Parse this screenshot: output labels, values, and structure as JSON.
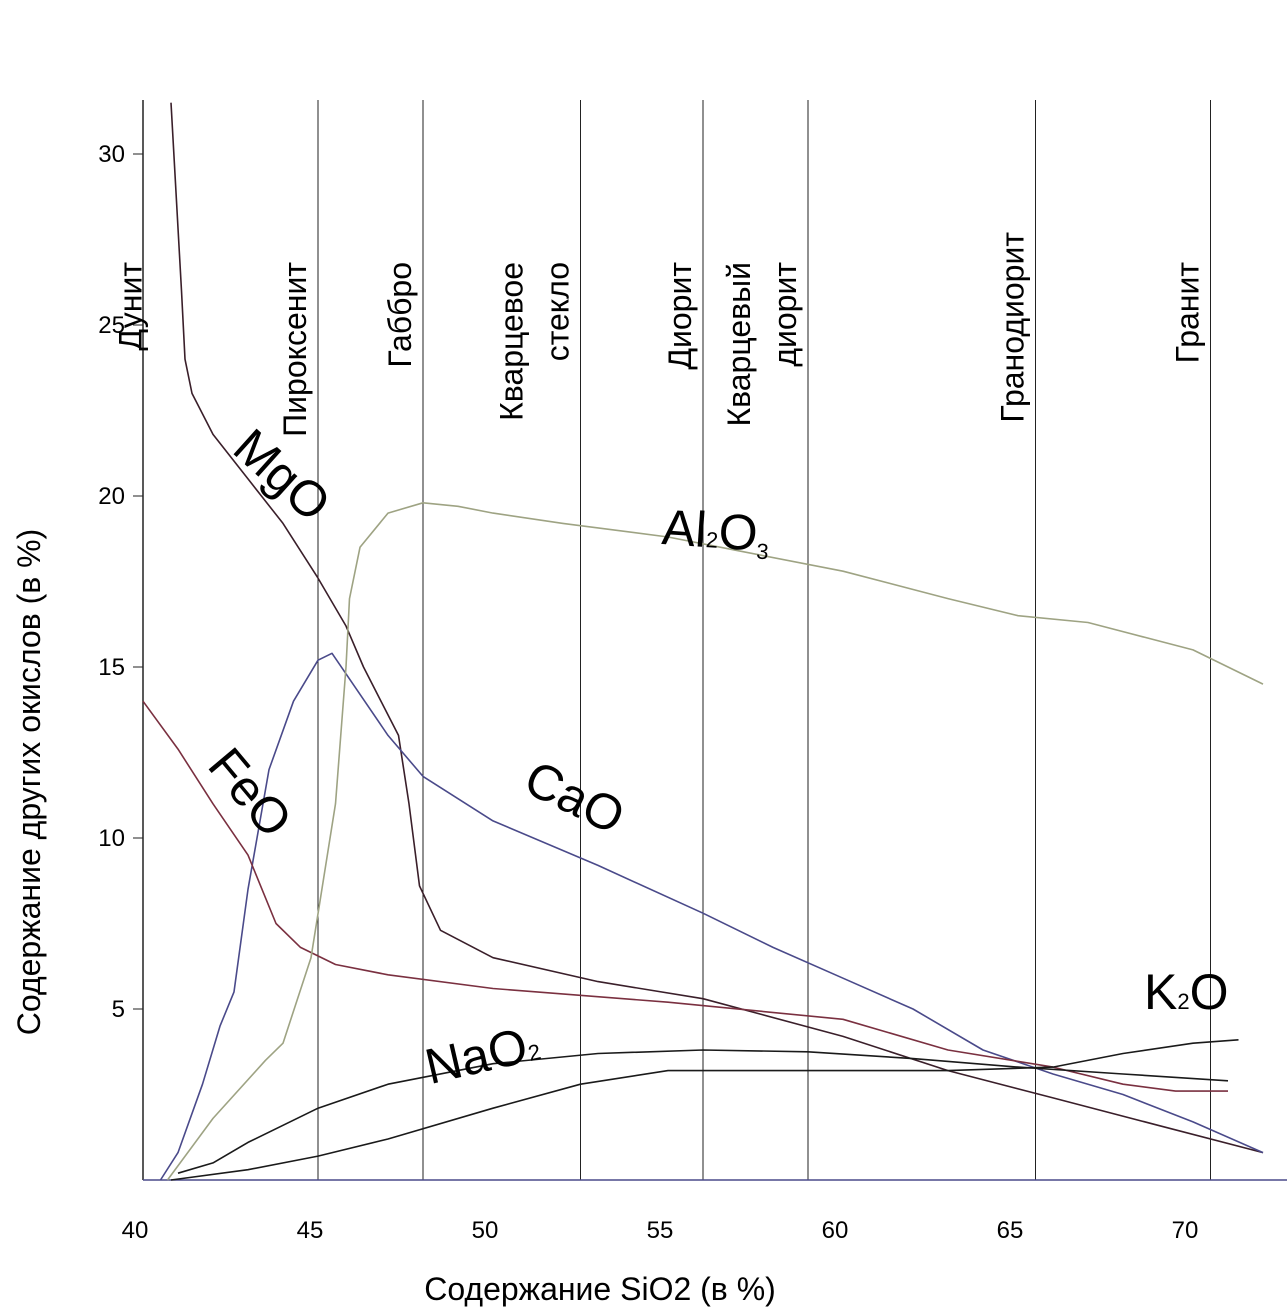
{
  "chart_data": {
    "type": "line",
    "xlabel": "Содержание SiO2 (в %)",
    "ylabel": "Содержание других окислов (в %)",
    "xlim": [
      40,
      72
    ],
    "ylim": [
      0,
      30
    ],
    "x_ticks": [
      "40",
      "45",
      "50",
      "55",
      "60",
      "65",
      "70"
    ],
    "y_ticks": [
      "5",
      "10",
      "15",
      "20",
      "25",
      "30"
    ],
    "grid": false,
    "legend": "inline labels",
    "rock_types": [
      {
        "lines": [
          "Дунит"
        ],
        "x": 40.3
      },
      {
        "lines": [
          "Пироксенит"
        ],
        "x": 45.0
      },
      {
        "lines": [
          "Габбро"
        ],
        "x": 48.0
      },
      {
        "lines": [
          "Кварцевое",
          "стекло"
        ],
        "x": 52.5
      },
      {
        "lines": [
          "Диорит"
        ],
        "x": 56.0
      },
      {
        "lines": [
          "Кварцевый",
          "диорит"
        ],
        "x": 59.0
      },
      {
        "lines": [
          "Гранодиорит"
        ],
        "x": 65.5
      },
      {
        "lines": [
          "Гранит"
        ],
        "x": 70.5
      }
    ],
    "series": [
      {
        "label": "MgO",
        "color": "#3a1f2a",
        "x": [
          40.8,
          41.1,
          41.2,
          41.4,
          42,
          43,
          44,
          45,
          45.8,
          46.3,
          46.8,
          47.3,
          47.6,
          47.9,
          48.5,
          50,
          53,
          56,
          60,
          63,
          66,
          69,
          72
        ],
        "y": [
          31.5,
          26,
          24,
          23,
          21.8,
          20.5,
          19.2,
          17.6,
          16.2,
          15,
          14,
          13,
          11,
          8.6,
          7.3,
          6.5,
          5.8,
          5.3,
          4.2,
          3.2,
          2.4,
          1.6,
          0.8
        ]
      },
      {
        "label": "CaO",
        "color": "#4a4a8a",
        "x": [
          40.5,
          41,
          41.7,
          42.2,
          42.6,
          43,
          43.6,
          44.3,
          45,
          45.4,
          46,
          47,
          48,
          50,
          53,
          56,
          58,
          60,
          62,
          64,
          66,
          68,
          70,
          72
        ],
        "y": [
          0,
          0.8,
          2.8,
          4.5,
          5.5,
          8.5,
          12,
          14,
          15.2,
          15.4,
          14.5,
          13,
          11.8,
          10.5,
          9.2,
          7.8,
          6.8,
          5.9,
          5,
          3.8,
          3.1,
          2.5,
          1.7,
          0.8
        ]
      },
      {
        "label": "FeO",
        "color": "#7a3040",
        "x": [
          40,
          41,
          42,
          43,
          43.8,
          44.5,
          45.5,
          47,
          50,
          55,
          60,
          63,
          66,
          68,
          69.5,
          71
        ],
        "y": [
          14,
          12.6,
          11,
          9.5,
          7.5,
          6.8,
          6.3,
          6,
          5.6,
          5.2,
          4.7,
          3.8,
          3.3,
          2.8,
          2.6,
          2.6
        ]
      },
      {
        "label": "Al2O3",
        "color": "#9ea383",
        "x": [
          40.7,
          42,
          43.5,
          44,
          44.8,
          45.5,
          45.8,
          45.9,
          46.2,
          47,
          48,
          49,
          50,
          52,
          55,
          57,
          60,
          63,
          65,
          67,
          70,
          72
        ],
        "y": [
          0,
          1.8,
          3.5,
          4,
          6.5,
          11,
          15,
          17,
          18.5,
          19.5,
          19.8,
          19.7,
          19.5,
          19.2,
          18.8,
          18.4,
          17.8,
          17,
          16.5,
          16.3,
          15.5,
          14.5
        ]
      },
      {
        "label": "Na2O",
        "color": "#1a1a1a",
        "x": [
          41,
          42,
          43,
          44,
          45,
          47,
          50,
          53,
          56,
          59,
          62,
          65,
          68,
          71
        ],
        "y": [
          0.2,
          0.5,
          1.1,
          1.6,
          2.1,
          2.8,
          3.4,
          3.7,
          3.8,
          3.75,
          3.55,
          3.3,
          3.1,
          2.9
        ]
      },
      {
        "label": "K2O",
        "color": "#1a1a1a",
        "x": [
          40.8,
          43,
          45,
          47,
          50,
          52.5,
          55,
          60,
          63,
          66,
          68,
          70,
          71.3
        ],
        "y": [
          0,
          0.3,
          0.7,
          1.2,
          2.1,
          2.8,
          3.2,
          3.2,
          3.2,
          3.3,
          3.7,
          4,
          4.1
        ]
      }
    ],
    "curve_labels": [
      {
        "text": "MgO",
        "sub": "",
        "suffix": "",
        "x": 42.5,
        "y": 21.3,
        "angle": 42
      },
      {
        "text": "FeO",
        "sub": "",
        "suffix": "",
        "x": 41.8,
        "y": 12.1,
        "angle": 50
      },
      {
        "text": "CaO",
        "sub": "",
        "suffix": "",
        "x": 50.8,
        "y": 11.4,
        "angle": 26
      },
      {
        "text": "Al",
        "sub": "2",
        "suffix": "O",
        "sub2": "3",
        "x": 54.8,
        "y": 18.6,
        "angle": 4
      },
      {
        "text": "NaO",
        "sub": "2",
        "suffix": "",
        "x": 48.2,
        "y": 2.8,
        "angle": -13
      },
      {
        "text": "K",
        "sub": "2",
        "suffix": "O",
        "x": 68.6,
        "y": 5.0,
        "angle": 0
      }
    ]
  }
}
